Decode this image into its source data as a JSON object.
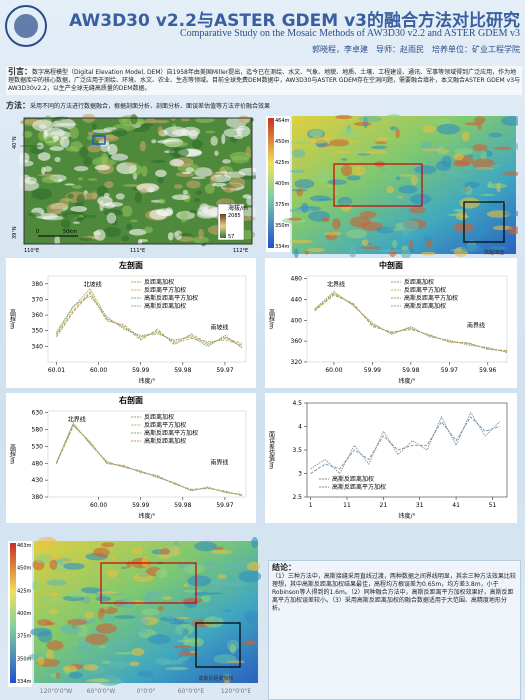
{
  "header": {
    "title": "AW3D30 v2.2与ASTER GDEM v3的融合方法对比研究",
    "subtitle": "Comparative Study on the Mosaic Methods of AW3D30 v2.2 and ASTER GDEM v3",
    "authors": "郭晓程，李卓建　导师：赵雨民　培养单位：矿业工程学院"
  },
  "intro": {
    "label": "引言：",
    "text": "数字高程模型（Digital Elevation Model, DEM）自1958年由美国Miller提出，迄今已在测绘、水文、气象、地貌、地质、土壤、工程建设、通讯、军事等领域得到广泛应用，作为地理数据库中的核心数据，广泛应用于测绘、环境、水文、农业、生态等领域。目前全球免费DEM数据中，AW3D30与ASTER GDEM存在空洞问题，需要融合填补，本文融合ASTER GDEM v3与AW3D30v2.2，以生产全球无缝高质量的DEM数据。"
  },
  "method": {
    "label": "方法：",
    "text": "采用不同的方法进行数据融合，根据剖面分析、剖面分析、面误差估值等方法评价融合效果"
  },
  "map_top_left": {
    "lat_labels": [
      "40°N",
      "39°N"
    ],
    "lon_labels": [
      "110°E",
      "111°E",
      "112°E"
    ],
    "legend_title": "海拔/m",
    "legend_max": "2085",
    "legend_min": "57",
    "scale_zero": "0",
    "scale_label": "50km"
  },
  "map_top_right": {
    "colorbar": [
      "464m",
      "450m",
      "425m",
      "400m",
      "375m",
      "350m",
      "334m"
    ],
    "caption": "高程填值"
  },
  "charts": [
    {
      "type": "line",
      "title": "左剖面",
      "xlabel": "纬度/°",
      "ylabel": "高程/m",
      "xlim": [
        60.012,
        59.965
      ],
      "ylim": [
        330,
        385
      ],
      "xticks": [
        60.01,
        {
          "value": 60,
          "label": "60.00"
        },
        59.99,
        59.98,
        59.97
      ],
      "yticks": [
        340,
        350,
        360,
        370,
        380
      ],
      "x": [
        60.01,
        60.006,
        60.002,
        59.998,
        59.994,
        59.99,
        59.986,
        59.982,
        59.978,
        59.974,
        59.97,
        59.966
      ],
      "series": [
        {
          "name": "反距离加权",
          "color": "#9aa15c",
          "values": [
            348,
            365,
            377,
            358,
            352,
            346,
            349,
            343,
            347,
            341,
            346,
            340
          ]
        },
        {
          "name": "反距离平方加权",
          "color": "#c7b15a",
          "values": [
            347,
            363,
            375,
            356,
            354,
            345,
            350,
            342,
            345,
            343,
            344,
            341
          ]
        },
        {
          "name": "高斯反距离平方加权",
          "color": "#7ea37a",
          "values": [
            349,
            366,
            372,
            359,
            351,
            347,
            348,
            344,
            346,
            340,
            347,
            339
          ]
        },
        {
          "name": "高斯反距离加权",
          "color": "#b49a6e",
          "values": [
            346,
            362,
            374,
            357,
            353,
            344,
            351,
            341,
            348,
            342,
            345,
            342
          ]
        }
      ],
      "annotations": [
        "北坡线",
        "南坡线"
      ]
    },
    {
      "type": "line",
      "title": "中剖面",
      "xlabel": "纬度/°",
      "ylabel": "高程/m",
      "xlim": [
        60.007,
        59.955
      ],
      "ylim": [
        320,
        485
      ],
      "xticks": [
        {
          "value": 60,
          "label": "60.00"
        },
        59.99,
        59.98,
        59.97,
        59.96
      ],
      "yticks": [
        320,
        360,
        400,
        440,
        480
      ],
      "x": [
        60.005,
        60.0,
        59.995,
        59.99,
        59.985,
        59.98,
        59.975,
        59.97,
        59.965,
        59.96,
        59.955
      ],
      "series": [
        {
          "name": "反距离加权",
          "color": "#9aa15c",
          "values": [
            420,
            452,
            430,
            392,
            375,
            386,
            370,
            360,
            355,
            346,
            340
          ]
        },
        {
          "name": "反距离平方加权",
          "color": "#c7b15a",
          "values": [
            418,
            448,
            433,
            388,
            378,
            382,
            372,
            358,
            357,
            344,
            342
          ]
        },
        {
          "name": "高斯反距离平方加权",
          "color": "#7ea37a",
          "values": [
            422,
            455,
            428,
            395,
            373,
            388,
            368,
            362,
            352,
            348,
            338
          ]
        },
        {
          "name": "高斯反距离加权",
          "color": "#b49a6e",
          "values": [
            419,
            450,
            431,
            390,
            376,
            384,
            371,
            359,
            356,
            345,
            341
          ]
        }
      ],
      "annotations": [
        "北界线",
        "南界线"
      ]
    },
    {
      "type": "line",
      "title": "右剖面",
      "xlabel": "纬度/°",
      "ylabel": "高程/m",
      "xlim": [
        60.012,
        59.965
      ],
      "ylim": [
        380,
        635
      ],
      "xticks": [
        {
          "value": 60,
          "label": "60.00"
        },
        59.99,
        59.98,
        59.97
      ],
      "yticks": [
        380,
        430,
        480,
        530,
        580,
        630
      ],
      "x": [
        60.01,
        60.006,
        60.002,
        59.998,
        59.994,
        59.99,
        59.986,
        59.982,
        59.978,
        59.974,
        59.97,
        59.966
      ],
      "series": [
        {
          "name": "反距离加权",
          "color": "#9aa15c",
          "values": [
            480,
            595,
            540,
            482,
            470,
            455,
            440,
            420,
            400,
            408,
            395,
            386
          ]
        },
        {
          "name": "反距离平方加权",
          "color": "#c7b15a",
          "values": [
            478,
            590,
            545,
            478,
            474,
            452,
            444,
            418,
            403,
            405,
            398,
            384
          ]
        },
        {
          "name": "高斯反距离平方加权",
          "color": "#7ea37a",
          "values": [
            483,
            600,
            536,
            485,
            468,
            458,
            437,
            423,
            398,
            410,
            393,
            388
          ]
        },
        {
          "name": "高斯反距离加权",
          "color": "#b49a6e",
          "values": [
            479,
            593,
            542,
            480,
            472,
            454,
            442,
            419,
            401,
            406,
            396,
            385
          ]
        }
      ],
      "annotations": [
        "北界线",
        "南界线"
      ]
    },
    {
      "type": "line",
      "xlabel": "纬度/°",
      "ylabel": "面误差估值/m",
      "xlim": [
        0,
        55
      ],
      "ylim": [
        2.5,
        4.5
      ],
      "xticks": [
        1,
        11,
        21,
        31,
        41,
        51
      ],
      "yticks": [
        2.5,
        3,
        3.5,
        4,
        4.5
      ],
      "x": [
        1,
        5,
        9,
        13,
        17,
        21,
        25,
        29,
        33,
        37,
        41,
        45,
        49,
        53
      ],
      "series": [
        {
          "name": "高斯反距离加权",
          "color": "#8a8a8a",
          "values": [
            3.1,
            3.3,
            3.0,
            3.6,
            3.2,
            3.9,
            3.4,
            3.7,
            3.5,
            4.2,
            3.6,
            4.3,
            3.8,
            4.1
          ]
        },
        {
          "name": "高斯反距离平方加权",
          "color": "#6a8fb0",
          "values": [
            3.0,
            3.2,
            3.1,
            3.5,
            3.3,
            3.8,
            3.5,
            3.6,
            3.6,
            4.1,
            3.7,
            4.2,
            3.9,
            4.0
          ]
        }
      ]
    }
  ],
  "map_bottom": {
    "colorbar": [
      "463m",
      "450m",
      "425m",
      "400m",
      "375m",
      "350m",
      "334m"
    ],
    "lon_labels": [
      "120°0'0\"W",
      "60°0'0\"W",
      "0°0'0\"",
      "60°0'0\"E",
      "120°0'0\"E"
    ],
    "caption": "高斯反距离加权"
  },
  "conclusion": {
    "label": "结论：",
    "text": "（1）三种方法中，高斯接缝采用直线过渡，两种数据之间界线明显，其余三种方法效果比较理想，其中高斯反距离加权结果最佳，高程均方根误差为0.65m，均方差3.8m，小于Robinson等人得到的1.6m。（2）同种融合方法中，高斯反距离平方加权效果好，高斯反距离平方加权误差较小。（3）采用高斯反距离加权的融合数据适用于大范围、高精度地形分析。"
  }
}
